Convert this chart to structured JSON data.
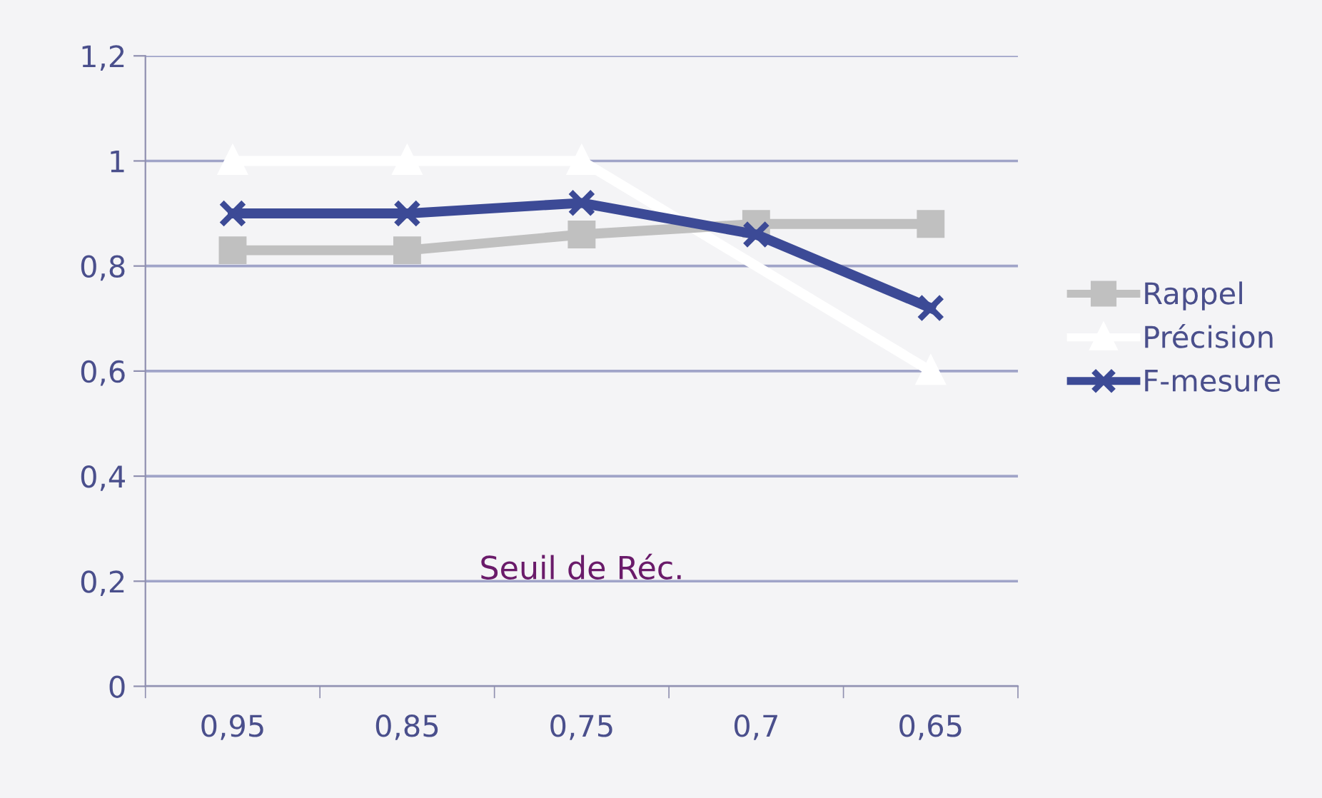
{
  "chart_data": {
    "type": "line",
    "xlabel": "Seuil de Réc.",
    "categories": [
      "0,95",
      "0,85",
      "0,75",
      "0,7",
      "0,65"
    ],
    "series": [
      {
        "name": "Rappel",
        "color": "#c0c0c0",
        "values": [
          0.83,
          0.83,
          0.86,
          0.88,
          0.88
        ],
        "marker": "square"
      },
      {
        "name": "Précision",
        "color": "#ffffff",
        "values": [
          1.0,
          1.0,
          1.0,
          null,
          0.6
        ],
        "marker": "triangle"
      },
      {
        "name": "F-mesure",
        "color": "#3c4a96",
        "values": [
          0.9,
          0.9,
          0.92,
          0.86,
          0.72
        ],
        "marker": "cross"
      }
    ],
    "ylim": [
      0,
      1.2
    ],
    "yticks": [
      0,
      {
        "value": 0.2,
        "label": "0,2"
      },
      {
        "value": 0.4,
        "label": "0,4"
      },
      {
        "value": 0.6,
        "label": "0,6"
      },
      {
        "value": 0.8,
        "label": "0,8"
      },
      1,
      {
        "value": 1.2,
        "label": "1,2"
      }
    ],
    "grid": "y",
    "legend": "right",
    "line_style": "solid"
  }
}
